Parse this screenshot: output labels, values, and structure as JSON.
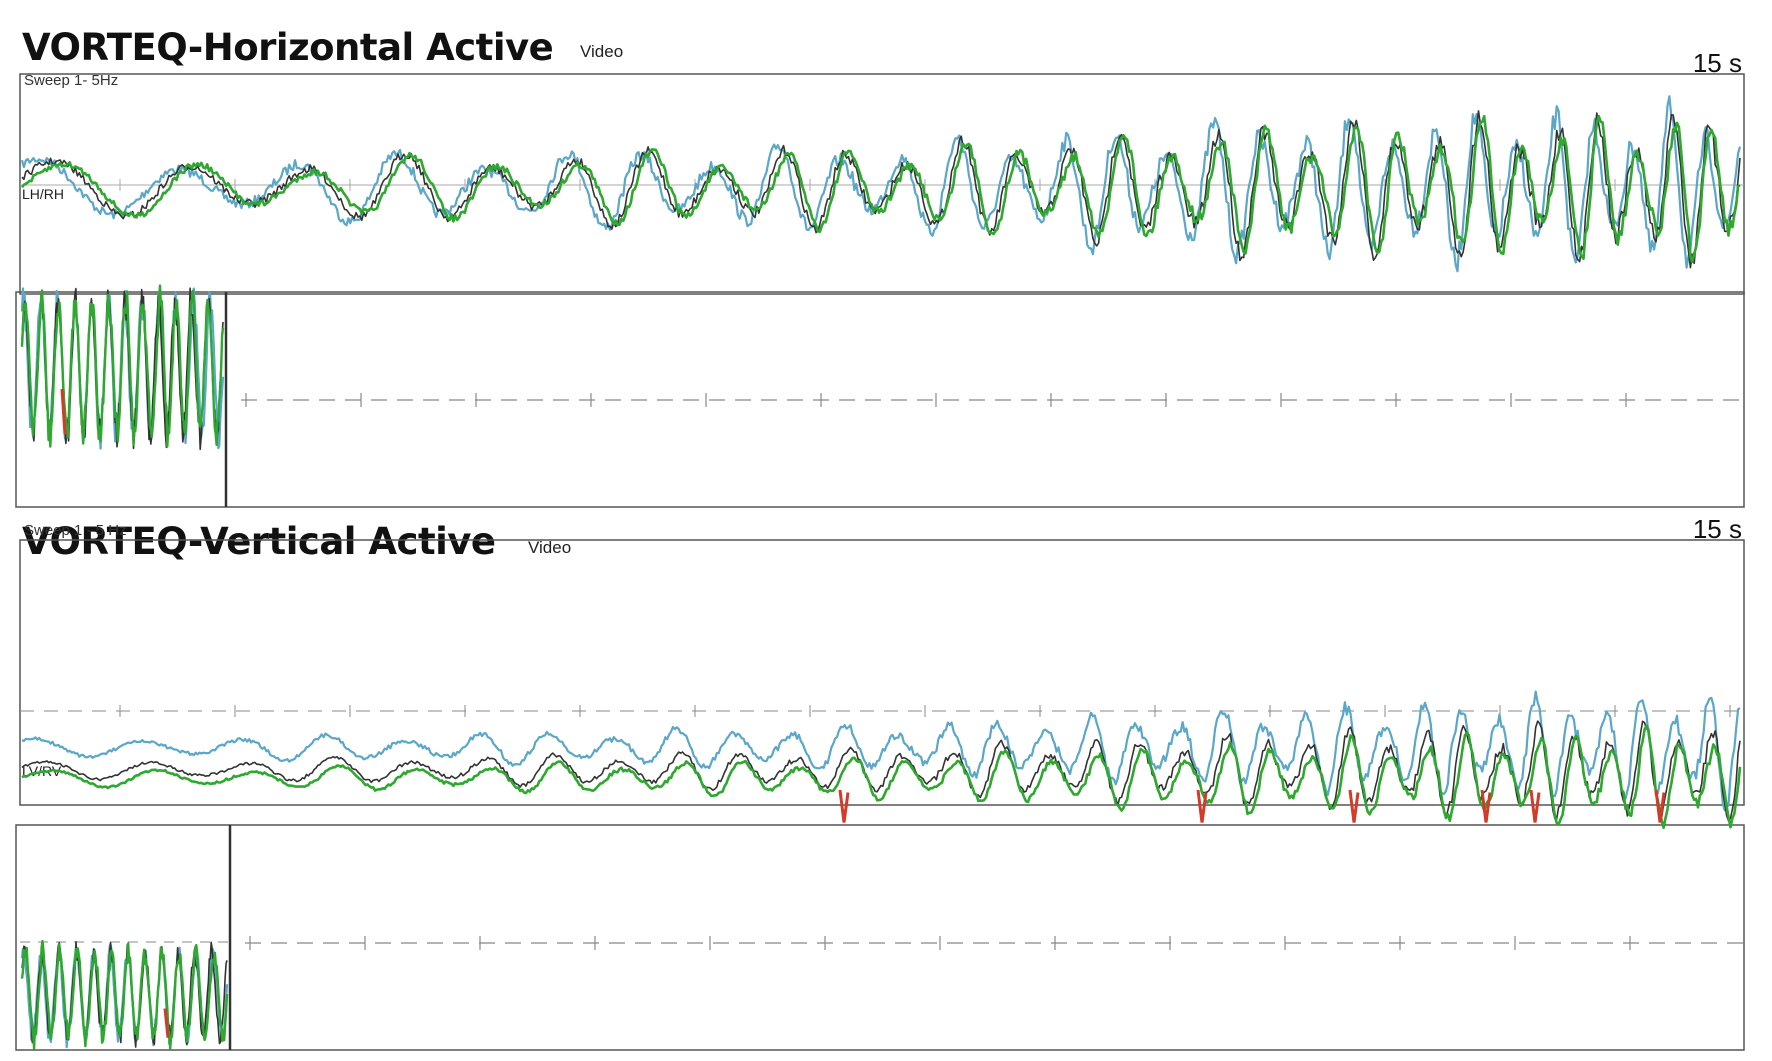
{
  "panels": [
    {
      "title": "VORTEQ-Horizontal Active",
      "source": "Video",
      "duration": "15 s",
      "sweep": "Sweep 1- 5Hz",
      "channel": "LH/RH"
    },
    {
      "title": "VORTEQ-Vertical Active",
      "source": "Video",
      "duration": "15 s",
      "sweep": "Sweep 1 - 5 Hz",
      "channel": "LV/RV"
    }
  ],
  "colors": {
    "trace_blue": "#5aa7c8",
    "trace_green": "#2ea82e",
    "trace_dark": "#333333",
    "trace_red": "#d23a2a",
    "trace_orange": "#e0902a",
    "frame": "#555555",
    "grid": "#888888"
  },
  "chart_data": [
    {
      "type": "line",
      "title": "VORTEQ-Horizontal Active",
      "subtitle": "Sweep 1- 5Hz",
      "x_label": "",
      "x_range_seconds": [
        0,
        15
      ],
      "frequency_sweep_hz": [
        1,
        5
      ],
      "series": [
        {
          "name": "LH/RH"
        }
      ],
      "amplitude_profile": [
        0.35,
        0.45,
        0.55,
        0.9,
        1.0
      ],
      "grid": true
    },
    {
      "type": "line",
      "title": "VORTEQ-Vertical Active",
      "subtitle": "Sweep 1 - 5 Hz",
      "x_label": "",
      "x_range_seconds": [
        0,
        15
      ],
      "frequency_sweep_hz": [
        1,
        5
      ],
      "series": [
        {
          "name": "LV/RV"
        }
      ],
      "amplitude_profile": [
        0.15,
        0.25,
        0.4,
        0.7,
        0.95
      ],
      "grid": true
    }
  ]
}
